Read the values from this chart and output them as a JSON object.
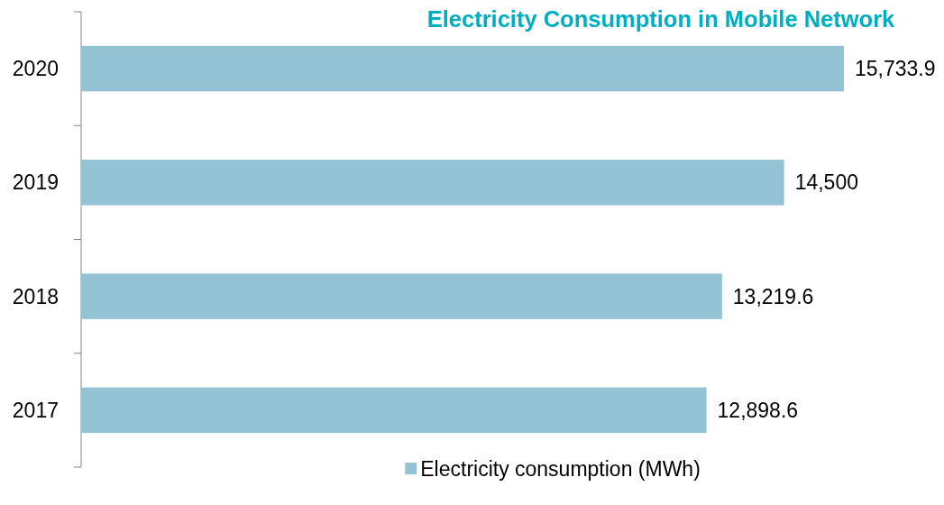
{
  "chart_data": {
    "type": "bar",
    "orientation": "horizontal",
    "title": "Electricity Consumption in Mobile Network",
    "categories": [
      "2020",
      "2019",
      "2018",
      "2017"
    ],
    "series": [
      {
        "name": "Electricity consumption (MWh)",
        "color": "#93c3d5",
        "values": [
          15733.9,
          14500,
          13219.6,
          12898.6
        ],
        "value_labels": [
          "15,733.9",
          "14,500",
          "13,219.6",
          "12,898.6"
        ]
      }
    ],
    "legend": "bottom"
  }
}
